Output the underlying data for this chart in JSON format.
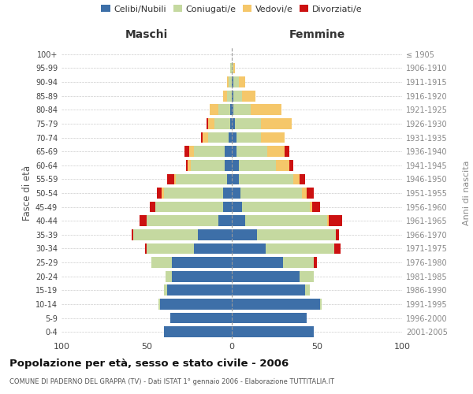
{
  "age_groups": [
    "0-4",
    "5-9",
    "10-14",
    "15-19",
    "20-24",
    "25-29",
    "30-34",
    "35-39",
    "40-44",
    "45-49",
    "50-54",
    "55-59",
    "60-64",
    "65-69",
    "70-74",
    "75-79",
    "80-84",
    "85-89",
    "90-94",
    "95-99",
    "100+"
  ],
  "birth_years": [
    "2001-2005",
    "1996-2000",
    "1991-1995",
    "1986-1990",
    "1981-1985",
    "1976-1980",
    "1971-1975",
    "1966-1970",
    "1961-1965",
    "1956-1960",
    "1951-1955",
    "1946-1950",
    "1941-1945",
    "1936-1940",
    "1931-1935",
    "1926-1930",
    "1921-1925",
    "1916-1920",
    "1911-1915",
    "1906-1910",
    "≤ 1905"
  ],
  "males": {
    "celibe": [
      40,
      36,
      42,
      38,
      35,
      35,
      22,
      20,
      8,
      5,
      5,
      3,
      4,
      4,
      2,
      1,
      1,
      0,
      0,
      0,
      0
    ],
    "coniugato": [
      0,
      0,
      1,
      2,
      4,
      12,
      28,
      38,
      42,
      40,
      35,
      30,
      20,
      18,
      12,
      9,
      7,
      3,
      2,
      1,
      0
    ],
    "vedovo": [
      0,
      0,
      0,
      0,
      0,
      0,
      0,
      0,
      0,
      0,
      1,
      1,
      2,
      3,
      3,
      4,
      5,
      2,
      1,
      0,
      0
    ],
    "divorziato": [
      0,
      0,
      0,
      0,
      0,
      0,
      1,
      1,
      4,
      3,
      3,
      4,
      1,
      3,
      1,
      1,
      0,
      0,
      0,
      0,
      0
    ]
  },
  "females": {
    "nubile": [
      48,
      44,
      52,
      43,
      40,
      30,
      20,
      15,
      8,
      6,
      5,
      4,
      4,
      3,
      3,
      2,
      1,
      1,
      1,
      0,
      0
    ],
    "coniugata": [
      0,
      0,
      1,
      3,
      8,
      18,
      40,
      46,
      48,
      40,
      36,
      32,
      22,
      18,
      14,
      15,
      10,
      5,
      3,
      1,
      0
    ],
    "vedova": [
      0,
      0,
      0,
      0,
      0,
      0,
      0,
      0,
      1,
      1,
      3,
      4,
      8,
      10,
      14,
      18,
      18,
      8,
      4,
      1,
      0
    ],
    "divorziata": [
      0,
      0,
      0,
      0,
      0,
      2,
      4,
      2,
      8,
      5,
      4,
      3,
      2,
      3,
      0,
      0,
      0,
      0,
      0,
      0,
      0
    ]
  },
  "colors": {
    "celibe": "#3d6fa8",
    "coniugato": "#c5d9a0",
    "vedovo": "#f5c76a",
    "divorziato": "#cc1111"
  },
  "xlim": 100,
  "title": "Popolazione per età, sesso e stato civile - 2006",
  "subtitle": "COMUNE DI PADERNO DEL GRAPPA (TV) - Dati ISTAT 1° gennaio 2006 - Elaborazione TUTTITALIA.IT",
  "ylabel_left": "Fasce di età",
  "ylabel_right": "Anni di nascita",
  "legend_labels": [
    "Celibi/Nubili",
    "Coniugati/e",
    "Vedovi/e",
    "Divorziati/e"
  ],
  "maschi_label": "Maschi",
  "femmine_label": "Femmine",
  "background_color": "#ffffff",
  "grid_color": "#cccccc"
}
